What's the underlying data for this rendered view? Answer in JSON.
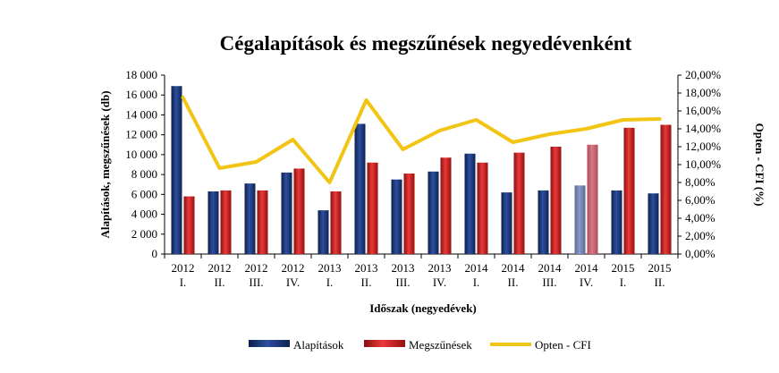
{
  "chart_data": {
    "type": "bar",
    "title": "Cégalapítások és megszűnések negyedévenként",
    "xlabel": "Időszak (negyedévek)",
    "ylabel": "Alapítások, megszűnések (db)",
    "y2label": "Opten - CFI (%)",
    "categories": [
      [
        "2012",
        "I."
      ],
      [
        "2012",
        "II."
      ],
      [
        "2012",
        "III."
      ],
      [
        "2012",
        "IV."
      ],
      [
        "2013",
        "I."
      ],
      [
        "2013",
        "II."
      ],
      [
        "2013",
        "III."
      ],
      [
        "2013",
        "IV."
      ],
      [
        "2014",
        "I."
      ],
      [
        "2014",
        "II."
      ],
      [
        "2014",
        "III."
      ],
      [
        "2014",
        "IV."
      ],
      [
        "2015",
        "I."
      ],
      [
        "2015",
        "II."
      ]
    ],
    "ylim": [
      0,
      18000
    ],
    "yticks": [
      "0",
      "2 000",
      "4 000",
      "6 000",
      "8 000",
      "10 000",
      "12 000",
      "14 000",
      "16 000",
      "18 000"
    ],
    "y2lim": [
      0,
      20
    ],
    "y2ticks": [
      "0,00%",
      "2,00%",
      "4,00%",
      "6,00%",
      "8,00%",
      "10,00%",
      "12,00%",
      "14,00%",
      "16,00%",
      "18,00%",
      "20,00%"
    ],
    "series": [
      {
        "name": "Alapítások",
        "kind": "bar",
        "axis": "left",
        "color": "#1f3a7a",
        "values": [
          16900,
          6300,
          7100,
          8200,
          4400,
          13100,
          7500,
          8300,
          10100,
          6200,
          6400,
          6900,
          6400,
          6100
        ]
      },
      {
        "name": "Megszűnések",
        "kind": "bar",
        "axis": "left",
        "color": "#cc1f1f",
        "values": [
          5800,
          6400,
          6400,
          8600,
          6300,
          9200,
          8100,
          9700,
          9200,
          10200,
          10800,
          11000,
          12700,
          13000
        ]
      },
      {
        "name": "Opten - CFI",
        "kind": "line",
        "axis": "right",
        "color": "#f2c413",
        "values": [
          17.5,
          9.6,
          10.3,
          12.8,
          8.0,
          17.2,
          11.7,
          13.8,
          15.0,
          12.5,
          13.4,
          14.0,
          15.0,
          15.1
        ]
      }
    ],
    "highlight_index": 11,
    "grid": false,
    "legend_position": "bottom"
  }
}
